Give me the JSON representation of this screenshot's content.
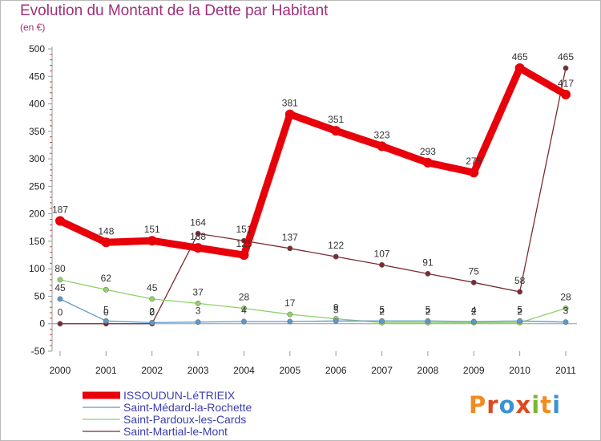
{
  "header": {
    "title": "Evolution du Montant de la Dette par Habitant",
    "unit": "(en €)"
  },
  "logo": {
    "text": "Proxiti",
    "letters": [
      "P",
      "r",
      "o",
      "x",
      "i",
      "t",
      "i"
    ],
    "colors": [
      "#f08c20",
      "#e0481f",
      "#3a93d5",
      "#e0481f",
      "#7ab830",
      "#f08c20",
      "#3a93d5"
    ]
  },
  "chart_data": {
    "type": "line",
    "title": "Evolution du Montant de la Dette par Habitant",
    "ylabel": "(en €)",
    "xlabel": "",
    "ylim": [
      -50,
      500
    ],
    "yticks": [
      -50,
      0,
      50,
      100,
      150,
      200,
      250,
      300,
      350,
      400,
      450,
      500
    ],
    "grid": false,
    "legend_position": "bottom-left",
    "x": [
      "2000",
      "2001",
      "2002",
      "2003",
      "2004",
      "2005",
      "2006",
      "2007",
      "2008",
      "2009",
      "2010",
      "2011"
    ],
    "series": [
      {
        "name": "Saint-Martial-le-Mont",
        "color": "#7a2b33",
        "values": [
          0,
          0,
          0,
          164,
          151,
          137,
          122,
          107,
          91,
          75,
          58,
          465
        ],
        "labels": [
          "0",
          "0",
          "0",
          "164",
          "151",
          "137",
          "122",
          "107",
          "91",
          "75",
          "58",
          "465"
        ]
      },
      {
        "name": "Saint-Pardoux-les-Cards",
        "color": "#8fd16a",
        "values": [
          80,
          62,
          45,
          37,
          28,
          17,
          9,
          2,
          2,
          2,
          2,
          28
        ],
        "labels": [
          "80",
          "62",
          "45",
          "37",
          "28",
          "17",
          "9",
          "2",
          "2",
          "2",
          "2",
          "28"
        ]
      },
      {
        "name": "Saint-Médard-la-Rochette",
        "color": "#5e97c9",
        "values": [
          45,
          5,
          2,
          3,
          4,
          4,
          5,
          5,
          5,
          4,
          5,
          3
        ],
        "labels": [
          "45",
          "5",
          "2",
          "3",
          "4",
          "",
          "5",
          "5",
          "5",
          "4",
          "5",
          "3"
        ]
      },
      {
        "name": "ISSOUDUN-LéTRIEIX",
        "color": "#e8000a",
        "values": [
          187,
          148,
          151,
          138,
          125,
          381,
          351,
          323,
          293,
          275,
          465,
          417
        ],
        "labels": [
          "187",
          "148",
          "151",
          "138",
          "125",
          "381",
          "351",
          "323",
          "293",
          "275",
          "465",
          "417"
        ]
      }
    ]
  }
}
